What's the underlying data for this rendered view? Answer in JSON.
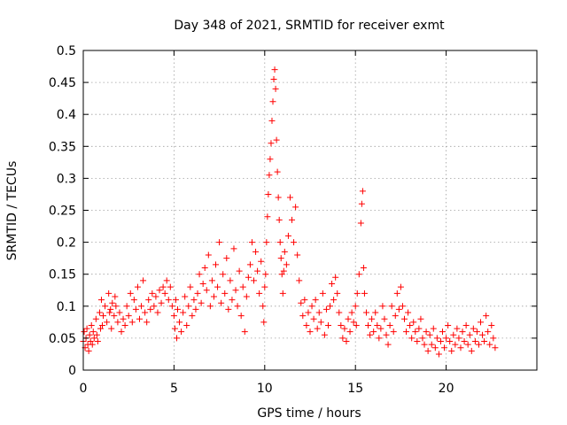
{
  "chart_data": {
    "type": "scatter",
    "title": "Day 348 of 2021, SRMTID for receiver exmt",
    "xlabel": "GPS time / hours",
    "ylabel": "SRMTID / TECUs",
    "xlim": [
      0,
      25
    ],
    "ylim": [
      0,
      0.5
    ],
    "xticks": [
      0,
      5,
      10,
      15,
      20
    ],
    "xtick_labels": [
      "0",
      "5",
      "10",
      "15",
      "20"
    ],
    "yticks": [
      0,
      0.05,
      0.1,
      0.15,
      0.2,
      0.25,
      0.3,
      0.35,
      0.4,
      0.45,
      0.5
    ],
    "ytick_labels": [
      "0",
      "0.05",
      "0.1",
      "0.15",
      "0.2",
      "0.25",
      "0.3",
      "0.35",
      "0.4",
      "0.45",
      "0.5"
    ],
    "grid": true,
    "marker": "+",
    "color": "#ff0000",
    "series": [
      {
        "name": "SRMTID",
        "points": [
          [
            0.0,
            0.045
          ],
          [
            0.05,
            0.06
          ],
          [
            0.1,
            0.035
          ],
          [
            0.15,
            0.05
          ],
          [
            0.2,
            0.065
          ],
          [
            0.25,
            0.04
          ],
          [
            0.3,
            0.03
          ],
          [
            0.35,
            0.055
          ],
          [
            0.4,
            0.045
          ],
          [
            0.45,
            0.07
          ],
          [
            0.5,
            0.04
          ],
          [
            0.55,
            0.06
          ],
          [
            0.6,
            0.05
          ],
          [
            0.7,
            0.08
          ],
          [
            0.75,
            0.055
          ],
          [
            0.8,
            0.045
          ],
          [
            0.9,
            0.09
          ],
          [
            0.95,
            0.065
          ],
          [
            1.0,
            0.11
          ],
          [
            1.05,
            0.07
          ],
          [
            1.1,
            0.085
          ],
          [
            1.2,
            0.1
          ],
          [
            1.3,
            0.075
          ],
          [
            1.4,
            0.12
          ],
          [
            1.45,
            0.09
          ],
          [
            1.5,
            0.095
          ],
          [
            1.55,
            0.065
          ],
          [
            1.6,
            0.105
          ],
          [
            1.7,
            0.085
          ],
          [
            1.75,
            0.115
          ],
          [
            1.8,
            0.1
          ],
          [
            1.9,
            0.075
          ],
          [
            2.0,
            0.09
          ],
          [
            2.1,
            0.06
          ],
          [
            2.2,
            0.08
          ],
          [
            2.3,
            0.07
          ],
          [
            2.4,
            0.1
          ],
          [
            2.5,
            0.085
          ],
          [
            2.6,
            0.12
          ],
          [
            2.7,
            0.075
          ],
          [
            2.8,
            0.11
          ],
          [
            2.9,
            0.095
          ],
          [
            3.0,
            0.13
          ],
          [
            3.1,
            0.08
          ],
          [
            3.2,
            0.1
          ],
          [
            3.3,
            0.14
          ],
          [
            3.4,
            0.09
          ],
          [
            3.5,
            0.075
          ],
          [
            3.6,
            0.11
          ],
          [
            3.7,
            0.095
          ],
          [
            3.8,
            0.12
          ],
          [
            3.9,
            0.1
          ],
          [
            4.0,
            0.115
          ],
          [
            4.1,
            0.09
          ],
          [
            4.2,
            0.125
          ],
          [
            4.3,
            0.105
          ],
          [
            4.4,
            0.13
          ],
          [
            4.5,
            0.12
          ],
          [
            4.6,
            0.14
          ],
          [
            4.7,
            0.11
          ],
          [
            4.8,
            0.13
          ],
          [
            4.9,
            0.1
          ],
          [
            5.0,
            0.085
          ],
          [
            5.05,
            0.065
          ],
          [
            5.1,
            0.11
          ],
          [
            5.15,
            0.05
          ],
          [
            5.2,
            0.095
          ],
          [
            5.3,
            0.075
          ],
          [
            5.4,
            0.06
          ],
          [
            5.5,
            0.09
          ],
          [
            5.6,
            0.115
          ],
          [
            5.7,
            0.07
          ],
          [
            5.8,
            0.1
          ],
          [
            5.9,
            0.13
          ],
          [
            6.0,
            0.085
          ],
          [
            6.1,
            0.11
          ],
          [
            6.2,
            0.095
          ],
          [
            6.3,
            0.12
          ],
          [
            6.4,
            0.15
          ],
          [
            6.5,
            0.105
          ],
          [
            6.6,
            0.135
          ],
          [
            6.7,
            0.16
          ],
          [
            6.8,
            0.125
          ],
          [
            6.9,
            0.18
          ],
          [
            7.0,
            0.1
          ],
          [
            7.1,
            0.14
          ],
          [
            7.2,
            0.115
          ],
          [
            7.3,
            0.165
          ],
          [
            7.4,
            0.13
          ],
          [
            7.5,
            0.2
          ],
          [
            7.6,
            0.105
          ],
          [
            7.7,
            0.15
          ],
          [
            7.8,
            0.12
          ],
          [
            7.9,
            0.175
          ],
          [
            8.0,
            0.095
          ],
          [
            8.1,
            0.14
          ],
          [
            8.2,
            0.11
          ],
          [
            8.3,
            0.19
          ],
          [
            8.4,
            0.125
          ],
          [
            8.5,
            0.1
          ],
          [
            8.6,
            0.155
          ],
          [
            8.7,
            0.085
          ],
          [
            8.8,
            0.13
          ],
          [
            8.9,
            0.06
          ],
          [
            9.0,
            0.115
          ],
          [
            9.1,
            0.145
          ],
          [
            9.2,
            0.165
          ],
          [
            9.3,
            0.2
          ],
          [
            9.4,
            0.14
          ],
          [
            9.5,
            0.185
          ],
          [
            9.6,
            0.155
          ],
          [
            9.7,
            0.12
          ],
          [
            9.8,
            0.17
          ],
          [
            9.9,
            0.1
          ],
          [
            9.95,
            0.075
          ],
          [
            10.0,
            0.13
          ],
          [
            10.05,
            0.15
          ],
          [
            10.1,
            0.2
          ],
          [
            10.15,
            0.24
          ],
          [
            10.2,
            0.275
          ],
          [
            10.25,
            0.305
          ],
          [
            10.3,
            0.33
          ],
          [
            10.35,
            0.355
          ],
          [
            10.4,
            0.39
          ],
          [
            10.45,
            0.42
          ],
          [
            10.5,
            0.455
          ],
          [
            10.55,
            0.47
          ],
          [
            10.6,
            0.44
          ],
          [
            10.65,
            0.36
          ],
          [
            10.7,
            0.31
          ],
          [
            10.75,
            0.27
          ],
          [
            10.8,
            0.235
          ],
          [
            10.85,
            0.2
          ],
          [
            10.9,
            0.175
          ],
          [
            10.95,
            0.15
          ],
          [
            11.0,
            0.12
          ],
          [
            11.05,
            0.155
          ],
          [
            11.1,
            0.185
          ],
          [
            11.2,
            0.165
          ],
          [
            11.3,
            0.21
          ],
          [
            11.4,
            0.27
          ],
          [
            11.5,
            0.235
          ],
          [
            11.6,
            0.2
          ],
          [
            11.7,
            0.255
          ],
          [
            11.8,
            0.18
          ],
          [
            11.9,
            0.14
          ],
          [
            12.0,
            0.105
          ],
          [
            12.1,
            0.085
          ],
          [
            12.2,
            0.11
          ],
          [
            12.3,
            0.07
          ],
          [
            12.4,
            0.09
          ],
          [
            12.5,
            0.06
          ],
          [
            12.6,
            0.1
          ],
          [
            12.7,
            0.08
          ],
          [
            12.8,
            0.11
          ],
          [
            12.9,
            0.065
          ],
          [
            13.0,
            0.09
          ],
          [
            13.1,
            0.075
          ],
          [
            13.2,
            0.12
          ],
          [
            13.3,
            0.055
          ],
          [
            13.4,
            0.095
          ],
          [
            13.5,
            0.07
          ],
          [
            13.6,
            0.1
          ],
          [
            13.7,
            0.135
          ],
          [
            13.8,
            0.11
          ],
          [
            13.9,
            0.145
          ],
          [
            14.0,
            0.12
          ],
          [
            14.1,
            0.09
          ],
          [
            14.2,
            0.07
          ],
          [
            14.3,
            0.05
          ],
          [
            14.4,
            0.065
          ],
          [
            14.5,
            0.045
          ],
          [
            14.6,
            0.08
          ],
          [
            14.7,
            0.06
          ],
          [
            14.8,
            0.09
          ],
          [
            14.9,
            0.075
          ],
          [
            15.0,
            0.1
          ],
          [
            15.05,
            0.07
          ],
          [
            15.1,
            0.12
          ],
          [
            15.2,
            0.15
          ],
          [
            15.3,
            0.23
          ],
          [
            15.35,
            0.26
          ],
          [
            15.4,
            0.28
          ],
          [
            15.45,
            0.16
          ],
          [
            15.5,
            0.12
          ],
          [
            15.6,
            0.09
          ],
          [
            15.7,
            0.07
          ],
          [
            15.8,
            0.055
          ],
          [
            15.9,
            0.08
          ],
          [
            16.0,
            0.06
          ],
          [
            16.1,
            0.09
          ],
          [
            16.2,
            0.07
          ],
          [
            16.3,
            0.05
          ],
          [
            16.4,
            0.065
          ],
          [
            16.5,
            0.1
          ],
          [
            16.6,
            0.08
          ],
          [
            16.7,
            0.055
          ],
          [
            16.8,
            0.04
          ],
          [
            16.9,
            0.07
          ],
          [
            17.0,
            0.1
          ],
          [
            17.1,
            0.06
          ],
          [
            17.2,
            0.085
          ],
          [
            17.3,
            0.12
          ],
          [
            17.4,
            0.095
          ],
          [
            17.5,
            0.13
          ],
          [
            17.6,
            0.1
          ],
          [
            17.7,
            0.08
          ],
          [
            17.8,
            0.06
          ],
          [
            17.9,
            0.09
          ],
          [
            18.0,
            0.07
          ],
          [
            18.1,
            0.05
          ],
          [
            18.2,
            0.075
          ],
          [
            18.3,
            0.06
          ],
          [
            18.4,
            0.045
          ],
          [
            18.5,
            0.065
          ],
          [
            18.6,
            0.08
          ],
          [
            18.7,
            0.05
          ],
          [
            18.8,
            0.04
          ],
          [
            18.9,
            0.06
          ],
          [
            19.0,
            0.03
          ],
          [
            19.1,
            0.055
          ],
          [
            19.2,
            0.04
          ],
          [
            19.3,
            0.065
          ],
          [
            19.4,
            0.035
          ],
          [
            19.5,
            0.05
          ],
          [
            19.6,
            0.025
          ],
          [
            19.7,
            0.045
          ],
          [
            19.8,
            0.06
          ],
          [
            19.9,
            0.035
          ],
          [
            20.0,
            0.05
          ],
          [
            20.1,
            0.07
          ],
          [
            20.2,
            0.045
          ],
          [
            20.3,
            0.03
          ],
          [
            20.4,
            0.055
          ],
          [
            20.5,
            0.04
          ],
          [
            20.6,
            0.065
          ],
          [
            20.7,
            0.05
          ],
          [
            20.8,
            0.035
          ],
          [
            20.9,
            0.06
          ],
          [
            21.0,
            0.045
          ],
          [
            21.1,
            0.07
          ],
          [
            21.2,
            0.04
          ],
          [
            21.3,
            0.055
          ],
          [
            21.4,
            0.03
          ],
          [
            21.5,
            0.065
          ],
          [
            21.6,
            0.045
          ],
          [
            21.7,
            0.06
          ],
          [
            21.8,
            0.04
          ],
          [
            21.9,
            0.075
          ],
          [
            22.0,
            0.055
          ],
          [
            22.1,
            0.045
          ],
          [
            22.2,
            0.085
          ],
          [
            22.3,
            0.06
          ],
          [
            22.4,
            0.04
          ],
          [
            22.5,
            0.07
          ],
          [
            22.6,
            0.05
          ],
          [
            22.7,
            0.035
          ]
        ]
      }
    ]
  }
}
